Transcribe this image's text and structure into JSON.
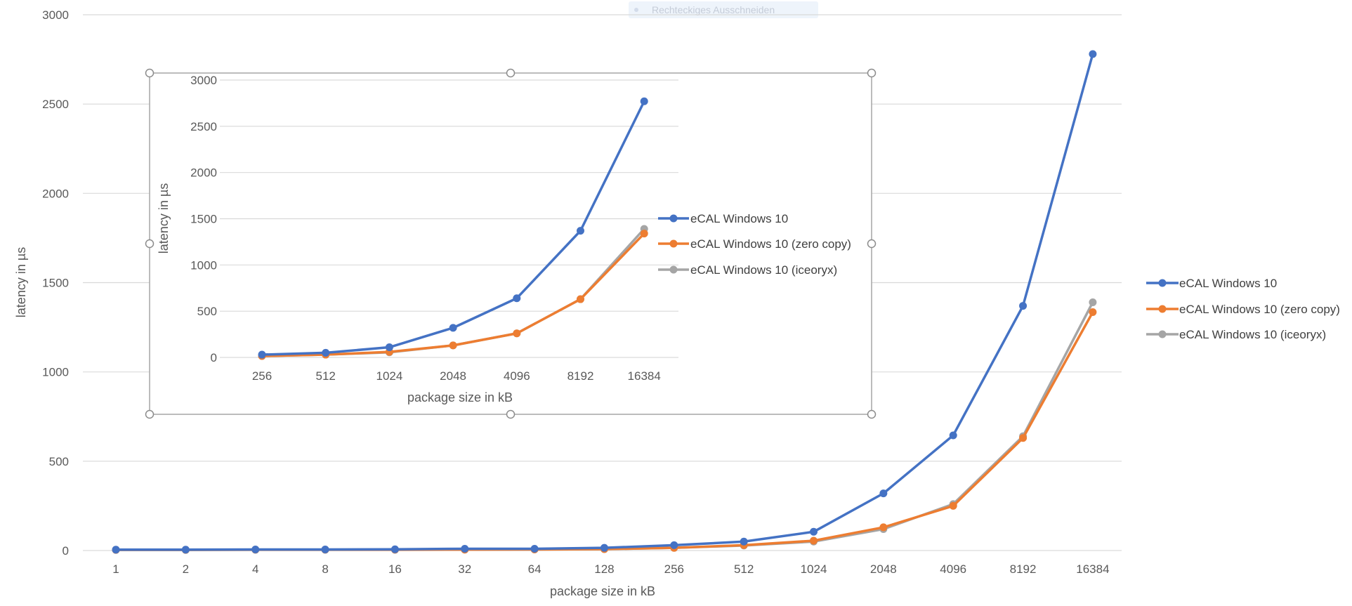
{
  "toast": {
    "label": "Rechteckiges Ausschneiden"
  },
  "colors": {
    "blue": "#4472c4",
    "orange": "#ed7d31",
    "gray": "#a5a5a5",
    "grid": "#d9d9d9",
    "handle": "#a6a6a6",
    "toast_bg": "#eef4fb"
  },
  "chart_data": [
    {
      "type": "line",
      "id": "main",
      "title": "",
      "xlabel": "package size in kB",
      "ylabel": "latency in µs",
      "ylim": [
        0,
        3000
      ],
      "y_ticks": [
        0,
        500,
        1000,
        1500,
        2000,
        2500,
        3000
      ],
      "categories": [
        "1",
        "2",
        "4",
        "8",
        "16",
        "32",
        "64",
        "128",
        "256",
        "512",
        "1024",
        "2048",
        "4096",
        "8192",
        "16384"
      ],
      "grid": true,
      "legend": "right",
      "series": [
        {
          "name": "eCAL Windows 10",
          "color": "#4472c4",
          "values": [
            5,
            5,
            6,
            6,
            7,
            10,
            10,
            15,
            30,
            50,
            105,
            320,
            645,
            1370,
            2780
          ]
        },
        {
          "name": "eCAL Windows 10 (zero copy)",
          "color": "#ed7d31",
          "values": [
            4,
            4,
            5,
            5,
            5,
            5,
            6,
            8,
            15,
            30,
            55,
            130,
            250,
            630,
            1335
          ]
        },
        {
          "name": "eCAL Windows 10 (iceoryx)",
          "color": "#a5a5a5",
          "values": [
            3,
            3,
            4,
            4,
            4,
            5,
            6,
            8,
            15,
            28,
            50,
            120,
            260,
            640,
            1390
          ]
        }
      ]
    },
    {
      "type": "line",
      "id": "inset",
      "title": "",
      "xlabel": "package size in kB",
      "ylabel": "latency in µs",
      "ylim": [
        0,
        3000
      ],
      "y_ticks": [
        0,
        500,
        1000,
        1500,
        2000,
        2500,
        3000
      ],
      "categories": [
        "256",
        "512",
        "1024",
        "2048",
        "4096",
        "8192",
        "16384"
      ],
      "grid": true,
      "legend": "right",
      "series": [
        {
          "name": "eCAL Windows 10",
          "color": "#4472c4",
          "values": [
            30,
            50,
            110,
            320,
            640,
            1370,
            2770
          ]
        },
        {
          "name": "eCAL Windows 10 (zero copy)",
          "color": "#ed7d31",
          "values": [
            15,
            30,
            60,
            130,
            260,
            630,
            1340
          ]
        },
        {
          "name": "eCAL Windows 10 (iceoryx)",
          "color": "#a5a5a5",
          "values": [
            15,
            30,
            55,
            130,
            260,
            630,
            1390
          ]
        }
      ]
    }
  ]
}
